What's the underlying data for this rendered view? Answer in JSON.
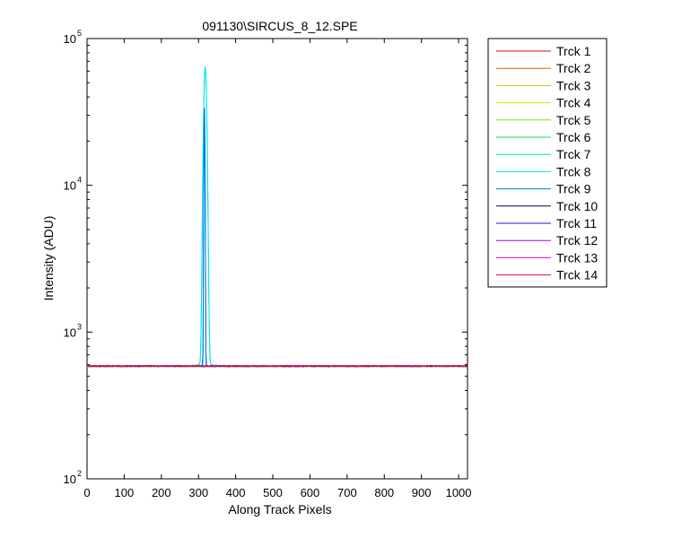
{
  "chart_data": {
    "type": "line",
    "title": "091130\\SIRCUS_8_12.SPE",
    "xlabel": "Along Track Pixels",
    "ylabel": "Intensity (ADU)",
    "xlim": [
      0,
      1024
    ],
    "ylim": [
      100,
      100000
    ],
    "yscale": "log",
    "grid": false,
    "legend_position": "outside-right",
    "x_ticks": [
      "0",
      "100",
      "200",
      "300",
      "400",
      "500",
      "600",
      "700",
      "800",
      "900",
      "1000"
    ],
    "x_tick_values": [
      0,
      100,
      200,
      300,
      400,
      500,
      600,
      700,
      800,
      900,
      1000
    ],
    "y_ticks": [
      {
        "value": 100,
        "base": "10",
        "exp": "2"
      },
      {
        "value": 1000,
        "base": "10",
        "exp": "3"
      },
      {
        "value": 10000,
        "base": "10",
        "exp": "4"
      },
      {
        "value": 100000,
        "base": "10",
        "exp": "5"
      }
    ],
    "baseline": 585,
    "series": [
      {
        "name": "Trck 1",
        "color": "#e60000",
        "baseline": 585,
        "peak": 0
      },
      {
        "name": "Trck 2",
        "color": "#e66100",
        "baseline": 580,
        "peak": 0
      },
      {
        "name": "Trck 3",
        "color": "#e6b800",
        "baseline": 582,
        "peak": 0
      },
      {
        "name": "Trck 4",
        "color": "#c8e600",
        "baseline": 583,
        "peak": 0
      },
      {
        "name": "Trck 5",
        "color": "#6ee600",
        "baseline": 584,
        "peak": 0
      },
      {
        "name": "Trck 6",
        "color": "#12e63c",
        "baseline": 585,
        "peak": 0
      },
      {
        "name": "Trck 7",
        "color": "#00e6a0",
        "baseline": 586,
        "peak": 0
      },
      {
        "name": "Trck 8",
        "color": "#00e6e6",
        "baseline": 590,
        "peak": 63000,
        "peak_x": 318,
        "peak_width": 3.5
      },
      {
        "name": "Trck 9",
        "color": "#0073e6",
        "baseline": 587,
        "peak": 33000,
        "peak_x": 316,
        "peak_width": 1.2
      },
      {
        "name": "Trck 10",
        "color": "#00004d",
        "baseline": 586,
        "peak": 0
      },
      {
        "name": "Trck 11",
        "color": "#3c00e6",
        "baseline": 586,
        "peak": 0
      },
      {
        "name": "Trck 12",
        "color": "#a000e6",
        "baseline": 587,
        "peak": 0
      },
      {
        "name": "Trck 13",
        "color": "#e600c8",
        "baseline": 588,
        "peak": 0
      },
      {
        "name": "Trck 14",
        "color": "#e6005a",
        "baseline": 590,
        "peak": 0
      }
    ]
  }
}
